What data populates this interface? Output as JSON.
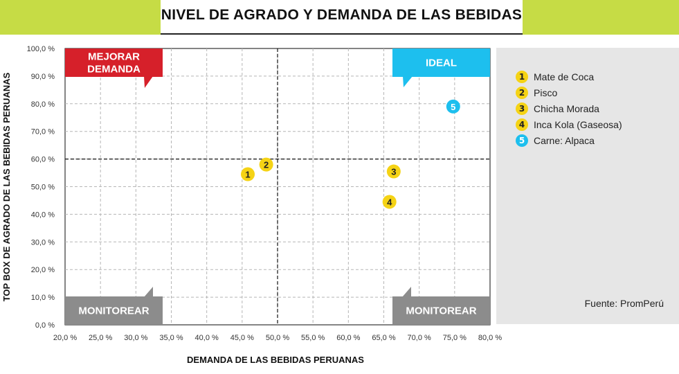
{
  "title": "NIVEL DE AGRADO Y DEMANDA DE LAS BEBIDAS",
  "source": "Fuente: PromPerú",
  "quadrants": {
    "top_left": "MEJORAR\nDEMANDA",
    "top_right": "IDEAL",
    "bottom_left": "MONITOREAR",
    "bottom_right": "MONITOREAR"
  },
  "colors": {
    "accent": "#c6dc45",
    "yellow": "#f5d315",
    "cyan": "#1dbfee",
    "red": "#d6202a",
    "gray": "#8c8c8c"
  },
  "chart_data": {
    "type": "scatter",
    "xlabel": "DEMANDA DE LAS BEBIDAS PERUANAS",
    "ylabel": "TOP BOX DE AGRADO DE LAS BEBIDAS PERUANAS",
    "xlim": [
      20,
      80
    ],
    "ylim": [
      0,
      100
    ],
    "x_ticks": [
      "20,0 %",
      "25,0 %",
      "30,0 %",
      "35,0 %",
      "40,0 %",
      "45,0 %",
      "50,0 %",
      "55,0 %",
      "60,0 %",
      "65,0 %",
      "70,0 %",
      "75,0 %",
      "80,0 %"
    ],
    "y_ticks": [
      "0,0 %",
      "10,0 %",
      "20,0 %",
      "30,0 %",
      "40,0 %",
      "50,0 %",
      "60,0 %",
      "70,0 %",
      "80,0 %",
      "90,0 %",
      "100,0 %"
    ],
    "x_tick_values": [
      20,
      25,
      30,
      35,
      40,
      45,
      50,
      55,
      60,
      65,
      70,
      75,
      80
    ],
    "y_tick_values": [
      0,
      10,
      20,
      30,
      40,
      50,
      60,
      70,
      80,
      90,
      100
    ],
    "reference_lines": {
      "x": 50,
      "y": 60
    },
    "grid": true,
    "legend_position": "right",
    "points": [
      {
        "id": "1",
        "name": "Mate de Coca",
        "x": 45.8,
        "y": 54.5,
        "color": "#f5d315"
      },
      {
        "id": "2",
        "name": "Pisco",
        "x": 48.4,
        "y": 58.0,
        "color": "#f5d315"
      },
      {
        "id": "3",
        "name": "Chicha Morada",
        "x": 66.4,
        "y": 55.5,
        "color": "#f5d315"
      },
      {
        "id": "4",
        "name": "Inca Kola (Gaseosa)",
        "x": 65.8,
        "y": 44.5,
        "color": "#f5d315"
      },
      {
        "id": "5",
        "name": "Carne: Alpaca",
        "x": 74.8,
        "y": 79.0,
        "color": "#1dbfee"
      }
    ]
  }
}
